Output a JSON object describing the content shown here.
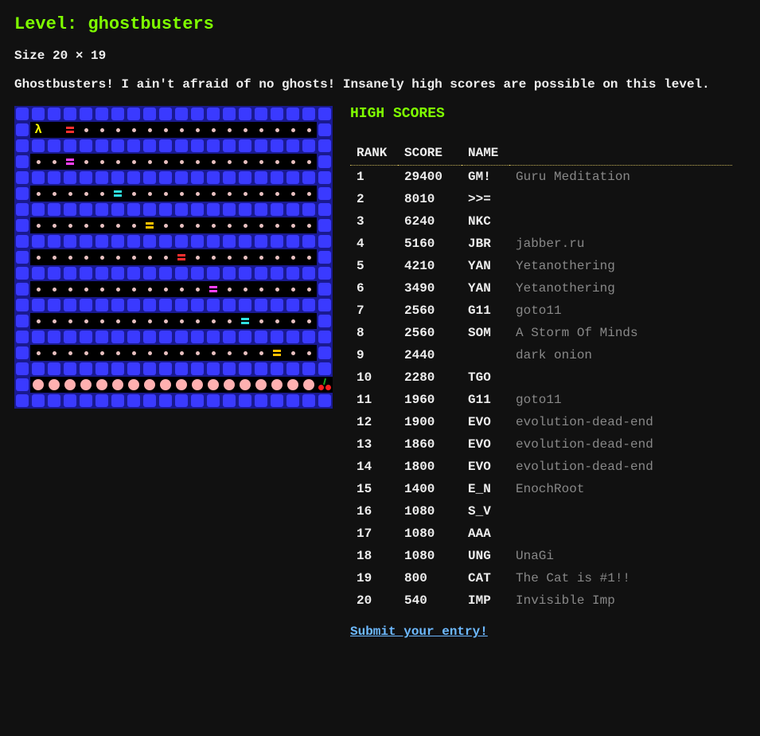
{
  "title_prefix": "Level: ",
  "level_name": "ghostbusters",
  "size_prefix": "Size ",
  "size_value": "20 × 19",
  "description": "Ghostbusters! I ain't afraid of no ghosts! Insanely high scores are possible on this level.",
  "high_scores_heading": "HIGH SCORES",
  "table_headers": {
    "rank": "RANK",
    "score": "SCORE",
    "name": "NAME"
  },
  "scores": [
    {
      "rank": 1,
      "score": 29400,
      "code": "GM!",
      "comment": "Guru Meditation"
    },
    {
      "rank": 2,
      "score": 8010,
      "code": ">>=",
      "comment": ""
    },
    {
      "rank": 3,
      "score": 6240,
      "code": "NKC",
      "comment": ""
    },
    {
      "rank": 4,
      "score": 5160,
      "code": "JBR",
      "comment": "jabber.ru"
    },
    {
      "rank": 5,
      "score": 4210,
      "code": "YAN",
      "comment": "Yetanothering"
    },
    {
      "rank": 6,
      "score": 3490,
      "code": "YAN",
      "comment": "Yetanothering"
    },
    {
      "rank": 7,
      "score": 2560,
      "code": "G11",
      "comment": "goto11"
    },
    {
      "rank": 8,
      "score": 2560,
      "code": "SOM",
      "comment": "A Storm Of Minds"
    },
    {
      "rank": 9,
      "score": 2440,
      "code": "",
      "comment": "dark onion"
    },
    {
      "rank": 10,
      "score": 2280,
      "code": "TGO",
      "comment": ""
    },
    {
      "rank": 11,
      "score": 1960,
      "code": "G11",
      "comment": "goto11"
    },
    {
      "rank": 12,
      "score": 1900,
      "code": "EVO",
      "comment": "evolution-dead-end"
    },
    {
      "rank": 13,
      "score": 1860,
      "code": "EVO",
      "comment": "evolution-dead-end"
    },
    {
      "rank": 14,
      "score": 1800,
      "code": "EVO",
      "comment": "evolution-dead-end"
    },
    {
      "rank": 15,
      "score": 1400,
      "code": "E_N",
      "comment": "EnochRoot"
    },
    {
      "rank": 16,
      "score": 1080,
      "code": "S_V",
      "comment": ""
    },
    {
      "rank": 17,
      "score": 1080,
      "code": "AAA",
      "comment": ""
    },
    {
      "rank": 18,
      "score": 1080,
      "code": "UNG",
      "comment": "UnaGi"
    },
    {
      "rank": 19,
      "score": 800,
      "code": "CAT",
      "comment": "The Cat is #1!!"
    },
    {
      "rank": 20,
      "score": 540,
      "code": "IMP",
      "comment": "Invisible Imp"
    }
  ],
  "submit_link_text": "Submit your entry!",
  "colors": {
    "background": "#111111",
    "text": "#eeeeee",
    "accent_green": "#7fff00",
    "link_blue": "#6db9ff",
    "comment_grey": "#888888",
    "header_rule": "#c5b358",
    "map_bg": "#000000",
    "wall_bg": "#1a1a90",
    "wall_block": "#3a3aff",
    "dot": "#e8c0c0",
    "pellet": "#ffb0b0",
    "player": "#ffff00",
    "cherry": "#ff2020",
    "cherry_stem": "#20a020"
  },
  "map": {
    "width": 20,
    "height": 19,
    "ghost_colors": {
      "R": "#ff3030",
      "M": "#ff40ff",
      "C": "#30e0e0",
      "Y": "#ffc000"
    },
    "legend": {
      "#": "wall",
      ".": "dot",
      " ": "empty-floor",
      "P": "player",
      "o": "power-pellet",
      "%": "cherry",
      "R": "ghost-red",
      "M": "ghost-magenta",
      "C": "ghost-cyan",
      "Y": "ghost-yellow"
    },
    "rows": [
      "####################",
      "#P R...............#",
      "####################",
      "#..M...............#",
      "####################",
      "#.....C............#",
      "####################",
      "#.......Y..........#",
      "####################",
      "#.........R........#",
      "####################",
      "#...........M......#",
      "####################",
      "#.............C....#",
      "####################",
      "#...............Y..#",
      "####################",
      "#oooooooooooooooooo%",
      "####################"
    ]
  }
}
